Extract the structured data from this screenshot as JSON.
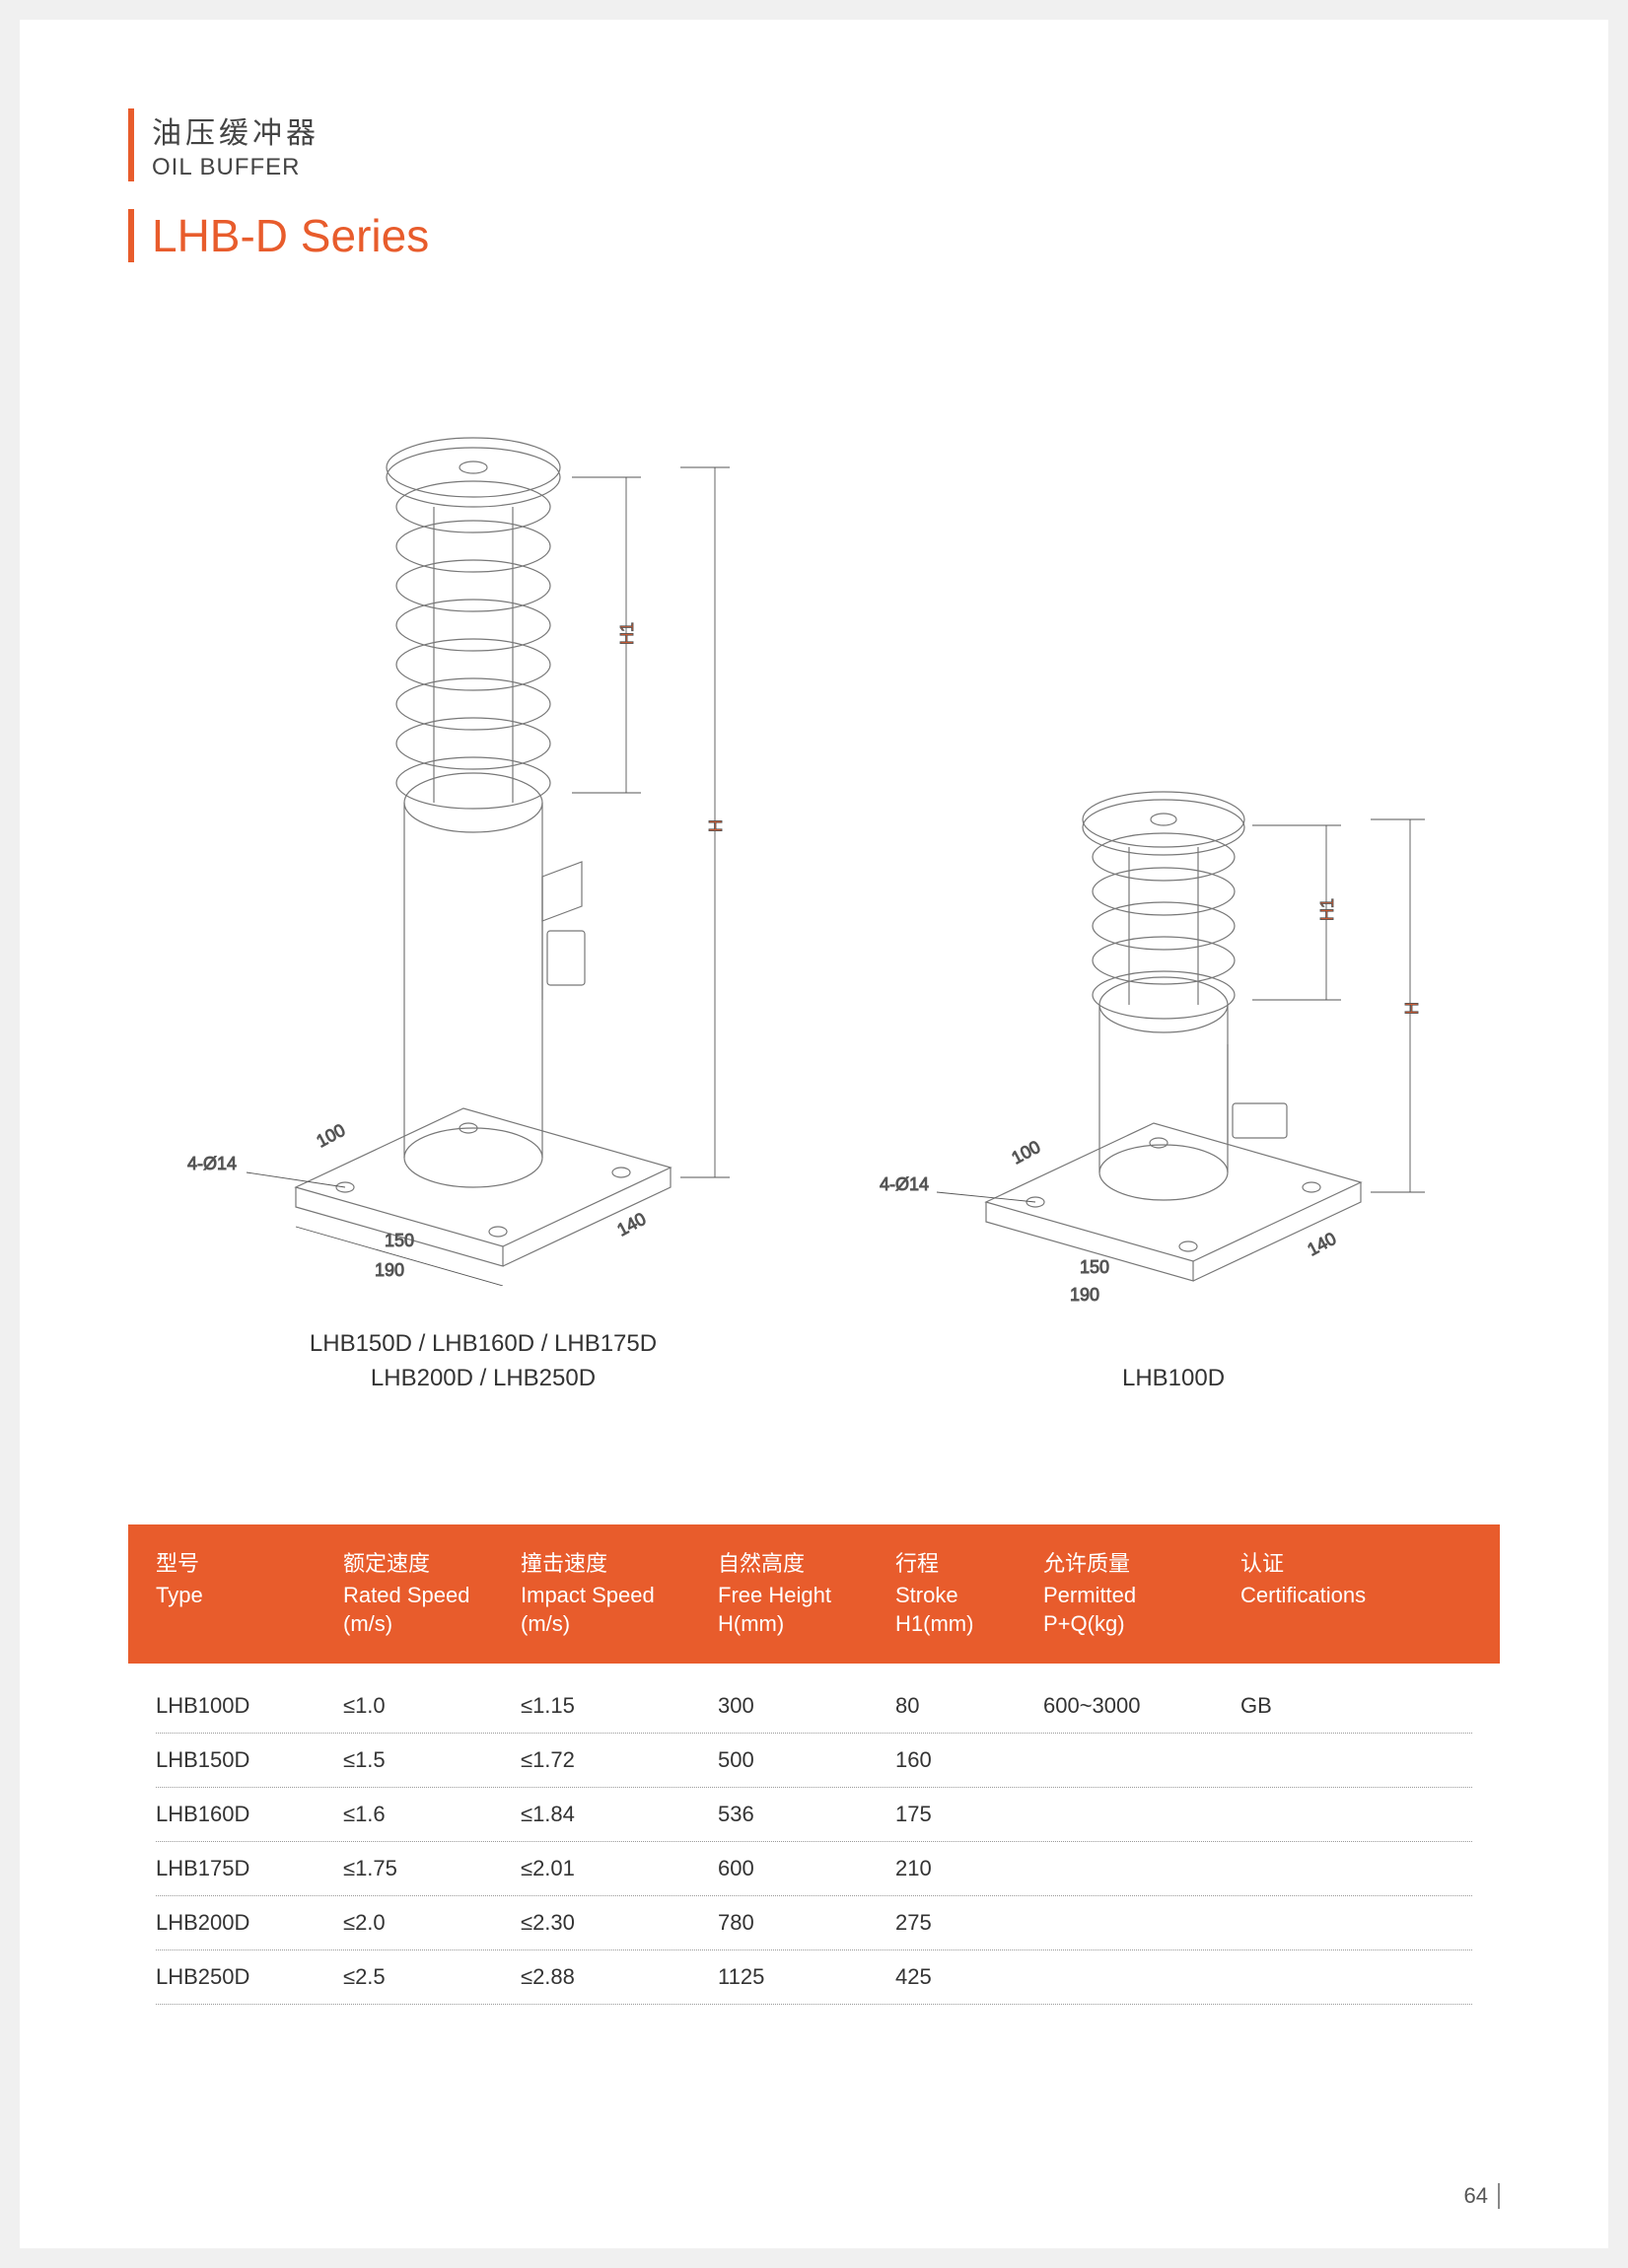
{
  "header": {
    "title_cn": "油压缓冲器",
    "title_en": "OIL BUFFER",
    "series": "LHB-D Series"
  },
  "colors": {
    "accent": "#e85c2c",
    "text": "#333333",
    "header_text": "#ffffff",
    "drawing_line": "#888888",
    "dim_line": "#666666"
  },
  "drawings": {
    "left": {
      "caption_line1": "LHB150D / LHB160D / LHB175D",
      "caption_line2": "LHB200D / LHB250D",
      "dims": {
        "base_w1": "190",
        "base_w2": "150",
        "base_d1": "140",
        "base_d2": "100",
        "hole": "4-Ø14",
        "H": "H",
        "H1": "H1"
      }
    },
    "right": {
      "caption": "LHB100D",
      "dims": {
        "base_w1": "190",
        "base_w2": "150",
        "base_d1": "140",
        "base_d2": "100",
        "hole": "4-Ø14",
        "H": "H",
        "H1": "H1"
      }
    }
  },
  "table": {
    "columns": [
      {
        "cn": "型号",
        "en": "Type"
      },
      {
        "cn": "额定速度",
        "en": "Rated Speed\n(m/s)"
      },
      {
        "cn": "撞击速度",
        "en": "Impact Speed\n(m/s)"
      },
      {
        "cn": "自然高度",
        "en": "Free Height\nH(mm)"
      },
      {
        "cn": "行程",
        "en": "Stroke\nH1(mm)"
      },
      {
        "cn": "允许质量",
        "en": "Permitted\nP+Q(kg)"
      },
      {
        "cn": "认证",
        "en": "Certifications"
      }
    ],
    "rows": [
      [
        "LHB100D",
        "≤1.0",
        "≤1.15",
        "300",
        "80",
        "600~3000",
        "GB"
      ],
      [
        "LHB150D",
        "≤1.5",
        "≤1.72",
        "500",
        "160",
        "",
        ""
      ],
      [
        "LHB160D",
        "≤1.6",
        "≤1.84",
        "536",
        "175",
        "",
        ""
      ],
      [
        "LHB175D",
        "≤1.75",
        "≤2.01",
        "600",
        "210",
        "",
        ""
      ],
      [
        "LHB200D",
        "≤2.0",
        "≤2.30",
        "780",
        "275",
        "",
        ""
      ],
      [
        "LHB250D",
        "≤2.5",
        "≤2.88",
        "1125",
        "425",
        "",
        ""
      ]
    ]
  },
  "page_number": "64"
}
